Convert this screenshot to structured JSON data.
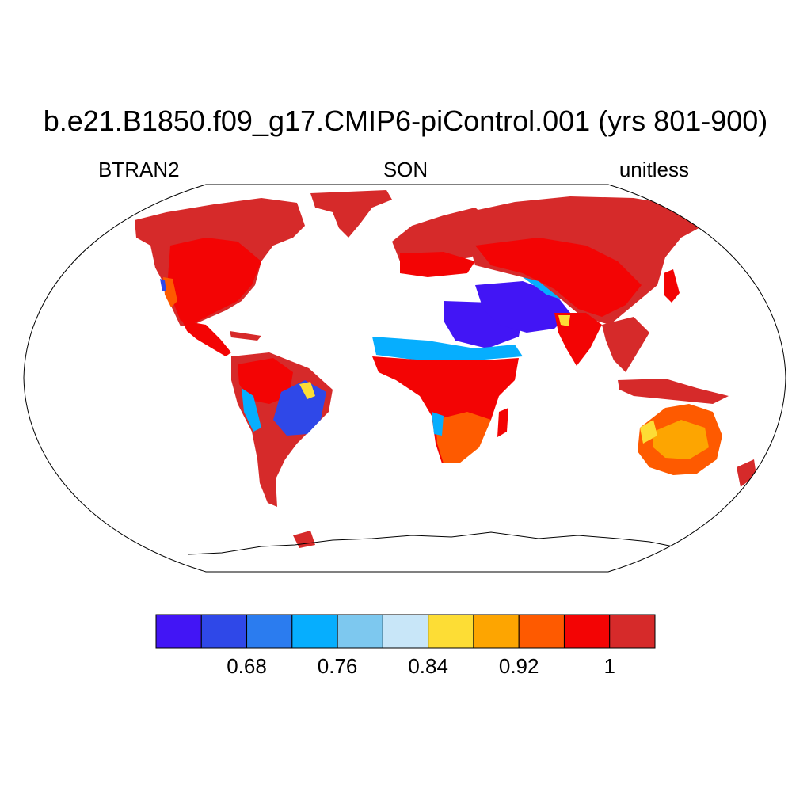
{
  "title": "b.e21.B1850.f09_g17.CMIP6-piControl.001 (yrs 801-900)",
  "subtitle_left": "BTRAN2",
  "subtitle_center": "SON",
  "subtitle_right": "unitless",
  "colorbar": {
    "colors": [
      "#4215f5",
      "#2f48e8",
      "#2b7cef",
      "#06aefe",
      "#7dc8ef",
      "#c8e6f8",
      "#fddd35",
      "#fda501",
      "#fe5a00",
      "#f30404",
      "#d62a2a"
    ],
    "tick_labels": [
      "0.68",
      "0.76",
      "0.84",
      "0.92",
      "1"
    ]
  },
  "palette_names": {
    "land_dominant": "dark red",
    "high": "red",
    "dry_regions": "blue to yellow"
  }
}
